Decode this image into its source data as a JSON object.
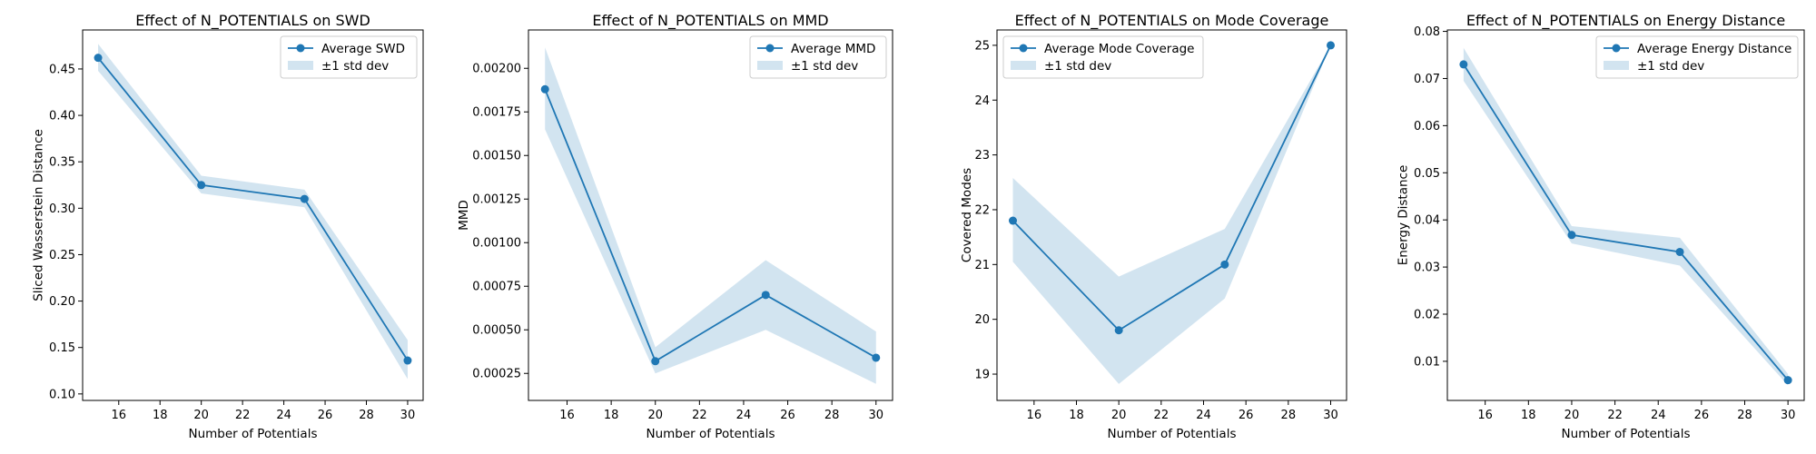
{
  "chart_data": [
    {
      "type": "line",
      "title": "Effect of N_POTENTIALS on SWD",
      "xlabel": "Number of Potentials",
      "ylabel": "Sliced Wasserstein Distance",
      "x": [
        15,
        20,
        25,
        30
      ],
      "xlim": [
        14.25,
        30.75
      ],
      "ylim": [
        0.093,
        0.492
      ],
      "xticks": [
        16,
        18,
        20,
        22,
        24,
        26,
        28,
        30
      ],
      "xtick_labels": [
        "16",
        "18",
        "20",
        "22",
        "24",
        "26",
        "28",
        "30"
      ],
      "yticks": [
        0.1,
        0.15,
        0.2,
        0.25,
        0.3,
        0.35,
        0.4,
        0.45
      ],
      "ytick_labels": [
        "0.10",
        "0.15",
        "0.20",
        "0.25",
        "0.30",
        "0.35",
        "0.40",
        "0.45"
      ],
      "series": [
        {
          "name": "Average SWD",
          "values": [
            0.462,
            0.325,
            0.31,
            0.136
          ]
        }
      ],
      "band": {
        "name": "±1 std dev",
        "lower": [
          0.448,
          0.316,
          0.301,
          0.116
        ],
        "upper": [
          0.477,
          0.335,
          0.32,
          0.158
        ]
      },
      "legend_position": "top-right",
      "grid": false,
      "line_color": "#1f77b4",
      "band_color": "#1f77b4"
    },
    {
      "type": "line",
      "title": "Effect of N_POTENTIALS on MMD",
      "xlabel": "Number of Potentials",
      "ylabel": "MMD",
      "x": [
        15,
        20,
        25,
        30
      ],
      "xlim": [
        14.25,
        30.75
      ],
      "ylim": [
        9.5e-05,
        0.00222
      ],
      "xticks": [
        16,
        18,
        20,
        22,
        24,
        26,
        28,
        30
      ],
      "xtick_labels": [
        "16",
        "18",
        "20",
        "22",
        "24",
        "26",
        "28",
        "30"
      ],
      "yticks": [
        0.00025,
        0.0005,
        0.00075,
        0.001,
        0.00125,
        0.0015,
        0.00175,
        0.002
      ],
      "ytick_labels": [
        "0.00025",
        "0.00050",
        "0.00075",
        "0.00100",
        "0.00125",
        "0.00150",
        "0.00175",
        "0.00200"
      ],
      "series": [
        {
          "name": "Average MMD",
          "values": [
            0.00188,
            0.00032,
            0.0007,
            0.00034
          ]
        }
      ],
      "band": {
        "name": "±1 std dev",
        "lower": [
          0.00165,
          0.00025,
          0.0005,
          0.00019
        ],
        "upper": [
          0.00212,
          0.0004,
          0.0009,
          0.00049
        ]
      },
      "legend_position": "top-right",
      "grid": false,
      "line_color": "#1f77b4",
      "band_color": "#1f77b4"
    },
    {
      "type": "line",
      "title": "Effect of N_POTENTIALS on Mode Coverage",
      "xlabel": "Number of Potentials",
      "ylabel": "Covered Modes",
      "x": [
        15,
        20,
        25,
        30
      ],
      "xlim": [
        14.25,
        30.75
      ],
      "ylim": [
        18.52,
        25.28
      ],
      "xticks": [
        16,
        18,
        20,
        22,
        24,
        26,
        28,
        30
      ],
      "xtick_labels": [
        "16",
        "18",
        "20",
        "22",
        "24",
        "26",
        "28",
        "30"
      ],
      "yticks": [
        19,
        20,
        21,
        22,
        23,
        24,
        25
      ],
      "ytick_labels": [
        "19",
        "20",
        "21",
        "22",
        "23",
        "24",
        "25"
      ],
      "series": [
        {
          "name": "Average Mode Coverage",
          "values": [
            21.8,
            19.8,
            21.0,
            25.0
          ]
        }
      ],
      "band": {
        "name": "±1 std dev",
        "lower": [
          21.05,
          18.82,
          20.38,
          25.0
        ],
        "upper": [
          22.58,
          20.78,
          21.65,
          25.0
        ]
      },
      "legend_position": "top-left",
      "grid": false,
      "line_color": "#1f77b4",
      "band_color": "#1f77b4"
    },
    {
      "type": "line",
      "title": "Effect of N_POTENTIALS on Energy Distance",
      "xlabel": "Number of Potentials",
      "ylabel": "Energy Distance",
      "x": [
        15,
        20,
        25,
        30
      ],
      "xlim": [
        14.25,
        30.75
      ],
      "ylim": [
        0.0017,
        0.0803
      ],
      "xticks": [
        16,
        18,
        20,
        22,
        24,
        26,
        28,
        30
      ],
      "xtick_labels": [
        "16",
        "18",
        "20",
        "22",
        "24",
        "26",
        "28",
        "30"
      ],
      "yticks": [
        0.01,
        0.02,
        0.03,
        0.04,
        0.05,
        0.06,
        0.07,
        0.08
      ],
      "ytick_labels": [
        "0.01",
        "0.02",
        "0.03",
        "0.04",
        "0.05",
        "0.06",
        "0.07",
        "0.08"
      ],
      "series": [
        {
          "name": "Average Energy Distance",
          "values": [
            0.073,
            0.0368,
            0.0332,
            0.006
          ]
        }
      ],
      "band": {
        "name": "±1 std dev",
        "lower": [
          0.0695,
          0.035,
          0.0303,
          0.0049
        ],
        "upper": [
          0.0765,
          0.0387,
          0.0362,
          0.0073
        ]
      },
      "legend_position": "top-right",
      "grid": false,
      "line_color": "#1f77b4",
      "band_color": "#1f77b4"
    }
  ]
}
